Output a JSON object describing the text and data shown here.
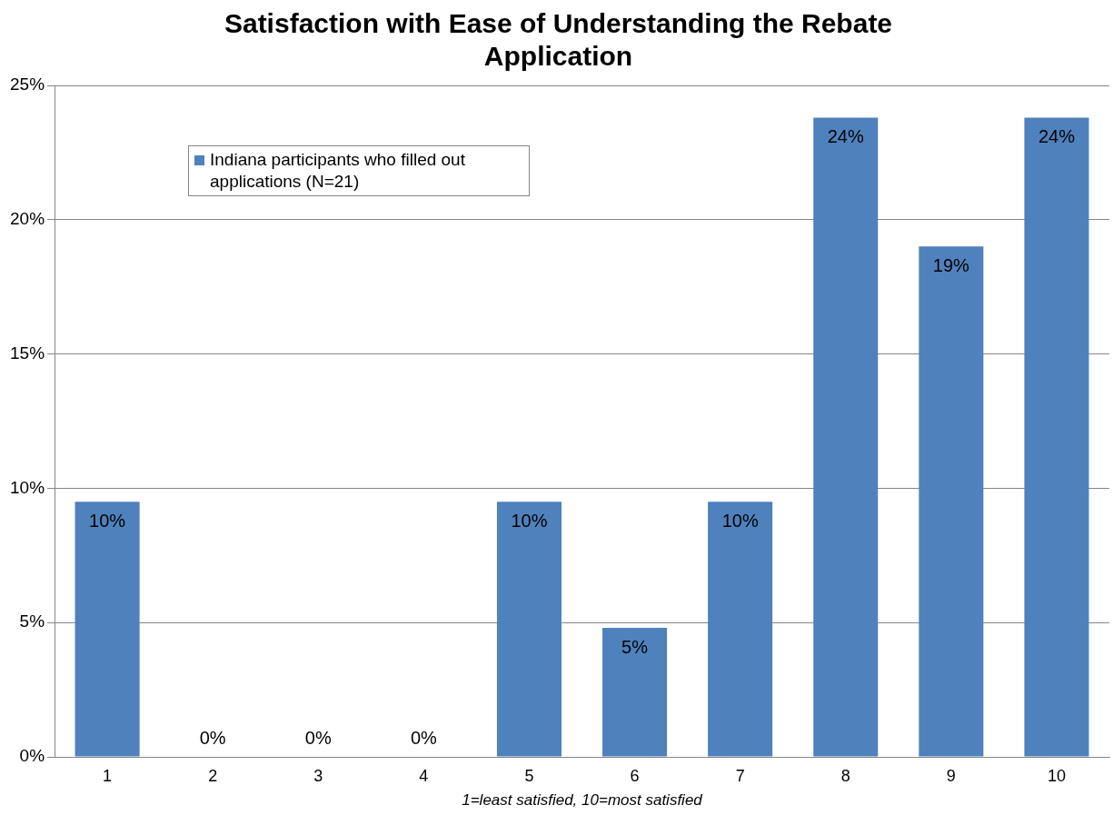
{
  "chart_data": {
    "type": "bar",
    "title": "Satisfaction with Ease of Understanding the Rebate Application",
    "xlabel": "1=least satisfied, 10=most satisfied",
    "categories": [
      "1",
      "2",
      "3",
      "4",
      "5",
      "6",
      "7",
      "8",
      "9",
      "10"
    ],
    "series": [
      {
        "name": "Indiana participants who filled out applications (N=21)",
        "color": "#4f81bd",
        "values": [
          9.5,
          0,
          0,
          0,
          9.5,
          4.8,
          9.5,
          23.8,
          19,
          23.8
        ],
        "value_labels": [
          "10%",
          "0%",
          "0%",
          "0%",
          "10%",
          "5%",
          "10%",
          "24%",
          "19%",
          "24%"
        ]
      }
    ],
    "ylim": [
      0,
      25
    ],
    "yticks": [
      {
        "value": 0,
        "label": "0%"
      },
      {
        "value": 5,
        "label": "5%"
      },
      {
        "value": 10,
        "label": "10%"
      },
      {
        "value": 15,
        "label": "15%"
      },
      {
        "value": 20,
        "label": "20%"
      },
      {
        "value": 25,
        "label": "25%"
      }
    ],
    "grid": "y",
    "legend": "top left"
  }
}
